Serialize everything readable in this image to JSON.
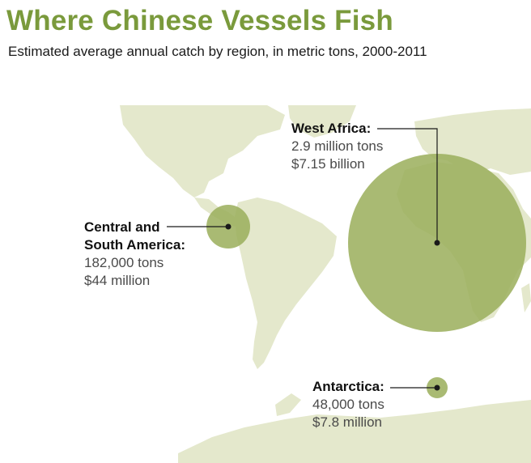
{
  "header": {
    "title": "Where Chinese Vessels Fish",
    "subtitle": "Estimated average annual catch by region, in metric tons, 2000-2011"
  },
  "colors": {
    "title": "#7a9a3c",
    "land": "#e4e8cc",
    "bubble": "#9aae5a",
    "marker": "#1a1a1a"
  },
  "regions": [
    {
      "name_lines": [
        "West Africa:"
      ],
      "tons": "2.9 million tons",
      "value": "$7.15 billion",
      "catch_tons": 2900000
    },
    {
      "name_lines": [
        "Central and",
        "South America:"
      ],
      "tons": "182,000 tons",
      "value": "$44 million",
      "catch_tons": 182000
    },
    {
      "name_lines": [
        "Antarctica:"
      ],
      "tons": "48,000 tons",
      "value": "$7.8 million",
      "catch_tons": 48000
    }
  ]
}
